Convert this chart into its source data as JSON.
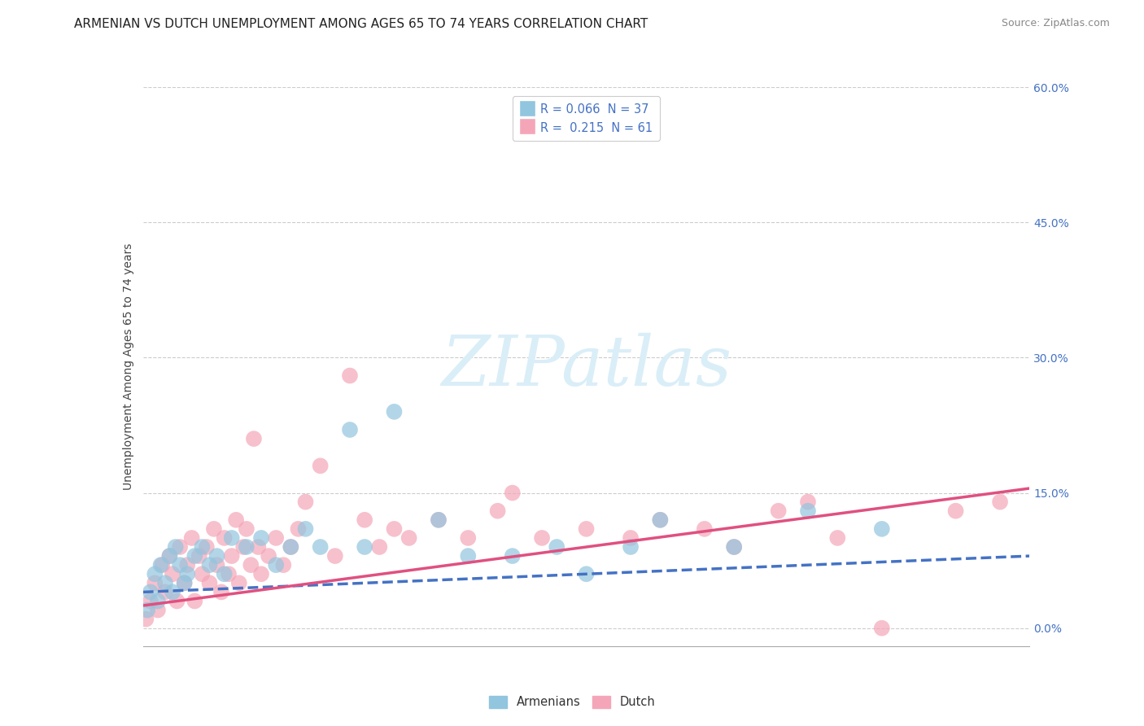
{
  "title": "ARMENIAN VS DUTCH UNEMPLOYMENT AMONG AGES 65 TO 74 YEARS CORRELATION CHART",
  "source": "Source: ZipAtlas.com",
  "ylabel": "Unemployment Among Ages 65 to 74 years",
  "ytick_labels": [
    "0.0%",
    "15.0%",
    "30.0%",
    "45.0%",
    "60.0%"
  ],
  "ytick_values": [
    0.0,
    15.0,
    30.0,
    45.0,
    60.0
  ],
  "xlim": [
    0.0,
    60.0
  ],
  "ylim": [
    -2.0,
    60.0
  ],
  "armenian_color": "#92c5de",
  "dutch_color": "#f4a6b8",
  "armenian_line_color": "#4472c4",
  "dutch_line_color": "#e05080",
  "background_color": "#ffffff",
  "armenians_x": [
    0.3,
    0.5,
    0.8,
    1.0,
    1.2,
    1.5,
    1.8,
    2.0,
    2.2,
    2.5,
    2.8,
    3.0,
    3.5,
    4.0,
    4.5,
    5.0,
    5.5,
    6.0,
    7.0,
    8.0,
    9.0,
    10.0,
    11.0,
    12.0,
    14.0,
    15.0,
    17.0,
    20.0,
    22.0,
    25.0,
    28.0,
    30.0,
    33.0,
    35.0,
    40.0,
    45.0,
    50.0
  ],
  "armenians_y": [
    2.0,
    4.0,
    6.0,
    3.0,
    7.0,
    5.0,
    8.0,
    4.0,
    9.0,
    7.0,
    5.0,
    6.0,
    8.0,
    9.0,
    7.0,
    8.0,
    6.0,
    10.0,
    9.0,
    10.0,
    7.0,
    9.0,
    11.0,
    9.0,
    22.0,
    9.0,
    24.0,
    12.0,
    8.0,
    8.0,
    9.0,
    6.0,
    9.0,
    12.0,
    9.0,
    13.0,
    11.0
  ],
  "dutch_x": [
    0.2,
    0.5,
    0.8,
    1.0,
    1.3,
    1.5,
    1.8,
    2.0,
    2.3,
    2.5,
    2.8,
    3.0,
    3.3,
    3.5,
    3.8,
    4.0,
    4.3,
    4.5,
    4.8,
    5.0,
    5.3,
    5.5,
    5.8,
    6.0,
    6.3,
    6.5,
    6.8,
    7.0,
    7.3,
    7.5,
    7.8,
    8.0,
    8.5,
    9.0,
    9.5,
    10.0,
    10.5,
    11.0,
    12.0,
    13.0,
    14.0,
    15.0,
    16.0,
    17.0,
    18.0,
    20.0,
    22.0,
    24.0,
    25.0,
    27.0,
    30.0,
    33.0,
    35.0,
    38.0,
    40.0,
    43.0,
    45.0,
    47.0,
    50.0,
    55.0,
    58.0
  ],
  "dutch_y": [
    1.0,
    3.0,
    5.0,
    2.0,
    7.0,
    4.0,
    8.0,
    6.0,
    3.0,
    9.0,
    5.0,
    7.0,
    10.0,
    3.0,
    8.0,
    6.0,
    9.0,
    5.0,
    11.0,
    7.0,
    4.0,
    10.0,
    6.0,
    8.0,
    12.0,
    5.0,
    9.0,
    11.0,
    7.0,
    21.0,
    9.0,
    6.0,
    8.0,
    10.0,
    7.0,
    9.0,
    11.0,
    14.0,
    18.0,
    8.0,
    28.0,
    12.0,
    9.0,
    11.0,
    10.0,
    12.0,
    10.0,
    13.0,
    15.0,
    10.0,
    11.0,
    10.0,
    12.0,
    11.0,
    9.0,
    13.0,
    14.0,
    10.0,
    0.0,
    13.0,
    14.0
  ],
  "title_fontsize": 11,
  "source_fontsize": 9,
  "axis_label_fontsize": 10,
  "tick_fontsize": 10,
  "legend_fontsize": 10.5
}
